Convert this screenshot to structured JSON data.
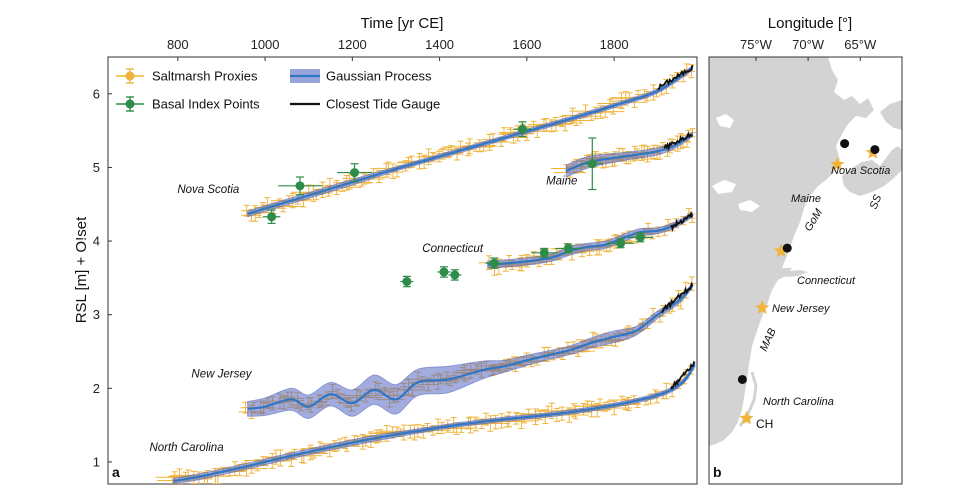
{
  "chart_data": [
    {
      "type": "line",
      "panel_label": "a",
      "xlabel": "Time [yr CE]",
      "ylabel": "RSL [m] + O!set",
      "xlim": [
        640,
        1990
      ],
      "ylim": [
        0.7,
        6.5
      ],
      "x_ticks": [
        800,
        1000,
        1200,
        1400,
        1600,
        1800
      ],
      "y_ticks": [
        1,
        2,
        3,
        4,
        5,
        6
      ],
      "x_axis_position": "top",
      "legend": {
        "placement": "top-left",
        "entries": [
          {
            "label": "Saltmarsh Proxies",
            "color": "#F0B43C",
            "kind": "errorbar"
          },
          {
            "label": "Gaussian Process",
            "color": "#2F76C4",
            "kind": "band"
          },
          {
            "label": "Basal Index Points",
            "color": "#2E8B4A",
            "kind": "errorbar"
          },
          {
            "label": "Closest Tide Gauge",
            "color": "#111111",
            "kind": "line"
          }
        ]
      },
      "colors": {
        "saltmarsh": "#F0B43C",
        "gp_line": "#2F76C4",
        "gp_band": "#5567C2",
        "basal": "#2E8B4A",
        "tide_gauge": "#111111"
      },
      "series": [
        {
          "name": "Nova Scotia",
          "gp": {
            "x": [
              960,
              1100,
              1200,
              1300,
              1400,
              1500,
              1600,
              1700,
              1800,
              1900,
              1980
            ],
            "y": [
              4.37,
              4.62,
              4.8,
              4.98,
              5.15,
              5.32,
              5.49,
              5.66,
              5.84,
              6.04,
              6.35
            ],
            "sigma": [
              0.04,
              0.04,
              0.04,
              0.03,
              0.03,
              0.03,
              0.03,
              0.03,
              0.03,
              0.03,
              0.03
            ]
          },
          "proxy_range": [
            950,
            1985
          ],
          "basal_points": [
            {
              "x": 1015,
              "y": 4.33,
              "ex": 20,
              "ey": 0.09
            },
            {
              "x": 1080,
              "y": 4.75,
              "ex": 50,
              "ey": 0.12
            },
            {
              "x": 1205,
              "y": 4.93,
              "ex": 40,
              "ey": 0.12
            },
            {
              "x": 1590,
              "y": 5.52,
              "ex": 20,
              "ey": 0.1
            }
          ],
          "tide_gauge": {
            "x": [
              1900,
              1980
            ],
            "y": [
              6.08,
              6.36
            ]
          }
        },
        {
          "name": "Maine",
          "gp": {
            "x": [
              1690,
              1740,
              1800,
              1850,
              1900,
              1940,
              1980
            ],
            "y": [
              4.95,
              5.07,
              5.13,
              5.17,
              5.22,
              5.3,
              5.45
            ],
            "sigma": [
              0.08,
              0.08,
              0.06,
              0.05,
              0.05,
              0.04,
              0.03
            ]
          },
          "proxy_range": [
            1690,
            1985
          ],
          "basal_points": [
            {
              "x": 1750,
              "y": 5.05,
              "ex": 25,
              "ey": 0.35
            }
          ],
          "tide_gauge": {
            "x": [
              1915,
              1980
            ],
            "y": [
              5.26,
              5.46
            ]
          }
        },
        {
          "name": "Connecticut",
          "gp": {
            "x": [
              1510,
              1560,
              1610,
              1660,
              1700,
              1740,
              1780,
              1820,
              1860,
              1900,
              1940,
              1980
            ],
            "y": [
              3.68,
              3.7,
              3.73,
              3.78,
              3.87,
              3.92,
              3.95,
              4.04,
              4.12,
              4.14,
              4.22,
              4.36
            ],
            "sigma": [
              0.05,
              0.05,
              0.05,
              0.05,
              0.06,
              0.05,
              0.05,
              0.05,
              0.05,
              0.04,
              0.04,
              0.03
            ]
          },
          "proxy_range": [
            1510,
            1985
          ],
          "basal_points": [
            {
              "x": 1325,
              "y": 3.45,
              "ex": 15,
              "ey": 0.07
            },
            {
              "x": 1410,
              "y": 3.58,
              "ex": 15,
              "ey": 0.07
            },
            {
              "x": 1435,
              "y": 3.54,
              "ex": 15,
              "ey": 0.07
            },
            {
              "x": 1525,
              "y": 3.7,
              "ex": 20,
              "ey": 0.07
            },
            {
              "x": 1640,
              "y": 3.84,
              "ex": 30,
              "ey": 0.06
            },
            {
              "x": 1695,
              "y": 3.9,
              "ex": 30,
              "ey": 0.06
            },
            {
              "x": 1815,
              "y": 3.97,
              "ex": 30,
              "ey": 0.06
            },
            {
              "x": 1860,
              "y": 4.05,
              "ex": 30,
              "ey": 0.06
            }
          ],
          "tide_gauge": {
            "x": [
              1930,
              1980
            ],
            "y": [
              4.18,
              4.37
            ]
          }
        },
        {
          "name": "New Jersey",
          "gp": {
            "x": [
              960,
              1000,
              1060,
              1100,
              1150,
              1200,
              1250,
              1300,
              1350,
              1420,
              1500,
              1550,
              1600,
              1650,
              1700,
              1750,
              1800,
              1850,
              1900,
              1950,
              1980
            ],
            "y": [
              1.72,
              1.75,
              1.85,
              1.75,
              1.92,
              1.8,
              1.98,
              1.85,
              2.08,
              2.12,
              2.25,
              2.3,
              2.38,
              2.45,
              2.52,
              2.62,
              2.7,
              2.78,
              3.0,
              3.2,
              3.4
            ],
            "sigma": [
              0.1,
              0.12,
              0.15,
              0.16,
              0.16,
              0.18,
              0.2,
              0.2,
              0.18,
              0.18,
              0.12,
              0.08,
              0.07,
              0.06,
              0.06,
              0.07,
              0.08,
              0.06,
              0.05,
              0.04,
              0.03
            ]
          },
          "proxy_range": [
            950,
            1985
          ],
          "basal_points": [],
          "tide_gauge": {
            "x": [
              1910,
              1980
            ],
            "y": [
              3.05,
              3.4
            ]
          }
        },
        {
          "name": "North Carolina",
          "gp": {
            "x": [
              790,
              850,
              950,
              1050,
              1150,
              1250,
              1350,
              1450,
              1550,
              1650,
              1750,
              1850,
              1920,
              1960,
              1985
            ],
            "y": [
              0.74,
              0.8,
              0.93,
              1.07,
              1.2,
              1.32,
              1.42,
              1.51,
              1.58,
              1.64,
              1.72,
              1.83,
              1.95,
              2.1,
              2.32
            ],
            "sigma": [
              0.04,
              0.04,
              0.04,
              0.04,
              0.04,
              0.04,
              0.03,
              0.03,
              0.03,
              0.03,
              0.03,
              0.03,
              0.03,
              0.03,
              0.03
            ]
          },
          "proxy_range": [
            780,
            1985
          ],
          "basal_points": [],
          "tide_gauge": {
            "x": [
              1930,
              1985
            ],
            "y": [
              2.0,
              2.34
            ]
          }
        }
      ],
      "site_labels": [
        {
          "text": "Nova Scotia",
          "x": 870,
          "y": 4.65
        },
        {
          "text": "Maine",
          "x": 1680,
          "y": 4.77
        },
        {
          "text": "Connecticut",
          "x": 1430,
          "y": 3.85
        },
        {
          "text": "New Jersey",
          "x": 900,
          "y": 2.15
        },
        {
          "text": "North Carolina",
          "x": 820,
          "y": 1.15
        }
      ]
    },
    {
      "type": "map",
      "panel_label": "b",
      "xlabel": "Longitude [°]",
      "lon_ticks": [
        "75°W",
        "70°W",
        "65°W"
      ],
      "lon_range": [
        -79.5,
        -61.0
      ],
      "lat_range": [
        33.5,
        47.8
      ],
      "land_color": "#D3D3D3",
      "sea_color": "#FFFFFF",
      "sites": [
        {
          "name": "Nova Scotia",
          "marker": "dot",
          "lon": -66.5,
          "lat": 44.9
        },
        {
          "name": "Maine",
          "marker": "star",
          "lon": -67.2,
          "lat": 44.2
        },
        {
          "name": "Connecticut",
          "marker": "star",
          "lon": -72.6,
          "lat": 41.3
        },
        {
          "name": "New Jersey",
          "marker": "star",
          "lon": -74.4,
          "lat": 39.4
        },
        {
          "name": "North Carolina",
          "marker": "star",
          "lon": -75.9,
          "lat": 35.7
        }
      ],
      "extra_markers": [
        {
          "marker": "star",
          "lon": -63.8,
          "lat": 44.6
        },
        {
          "marker": "dot",
          "lon": -63.6,
          "lat": 44.7
        },
        {
          "marker": "dot",
          "lon": -72.0,
          "lat": 41.4
        },
        {
          "marker": "dot",
          "lon": -76.3,
          "lat": 37.0
        }
      ],
      "region_labels": [
        "GoM",
        "SS",
        "MAB",
        "CH"
      ]
    }
  ]
}
